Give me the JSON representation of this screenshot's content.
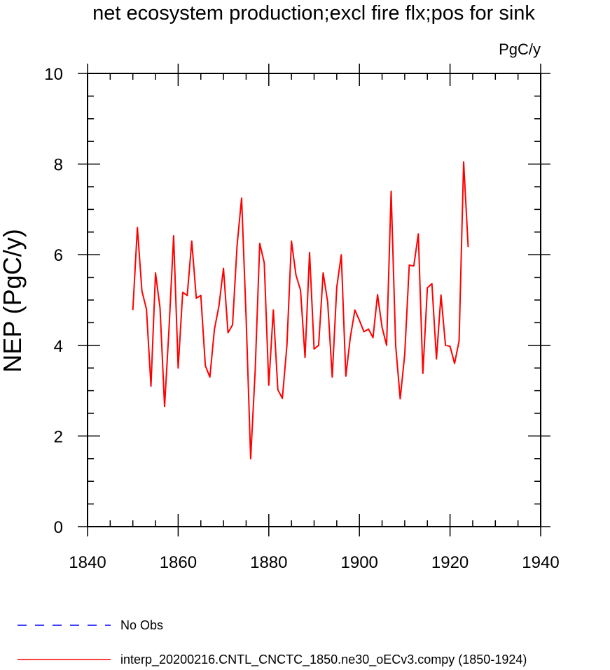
{
  "chart_data": {
    "type": "line",
    "title": "net ecosystem production;excl fire flx;pos for sink",
    "units": "PgC/y",
    "ylabel": "NEP  (PgC/y)",
    "xlabel": "",
    "xlim": [
      1840,
      1940
    ],
    "ylim": [
      0,
      10
    ],
    "x_major_ticks": [
      1840,
      1860,
      1880,
      1900,
      1920,
      1940
    ],
    "y_major_ticks": [
      0,
      2,
      4,
      6,
      8,
      10
    ],
    "x_minor_step": 5,
    "y_minor_step": 0.5,
    "grid": false,
    "legend_position": "bottom-left",
    "series": [
      {
        "name": "No Obs",
        "color": "#0000ff",
        "style": "dashed",
        "x": [],
        "values": []
      },
      {
        "name": "interp_20200216.CNTL_CNCTC_1850.ne30_oECv3.compy (1850-1924)",
        "color": "#ff0000",
        "style": "solid",
        "x": [
          1850,
          1851,
          1852,
          1853,
          1854,
          1855,
          1856,
          1857,
          1858,
          1859,
          1860,
          1861,
          1862,
          1863,
          1864,
          1865,
          1866,
          1867,
          1868,
          1869,
          1870,
          1871,
          1872,
          1873,
          1874,
          1875,
          1876,
          1877,
          1878,
          1879,
          1880,
          1881,
          1882,
          1883,
          1884,
          1885,
          1886,
          1887,
          1888,
          1889,
          1890,
          1891,
          1892,
          1893,
          1894,
          1895,
          1896,
          1897,
          1898,
          1899,
          1900,
          1901,
          1902,
          1903,
          1904,
          1905,
          1906,
          1907,
          1908,
          1909,
          1910,
          1911,
          1912,
          1913,
          1914,
          1915,
          1916,
          1917,
          1918,
          1919,
          1920,
          1921,
          1922,
          1923,
          1924
        ],
        "values": [
          4.78,
          6.6,
          5.2,
          4.8,
          3.1,
          5.6,
          4.82,
          2.65,
          4.4,
          6.42,
          3.5,
          5.17,
          5.1,
          6.3,
          5.04,
          5.1,
          3.55,
          3.3,
          4.35,
          4.87,
          5.7,
          4.28,
          4.45,
          6.2,
          7.25,
          4.6,
          1.5,
          3.45,
          6.25,
          5.82,
          3.12,
          4.78,
          3.02,
          2.83,
          4.0,
          6.3,
          5.55,
          5.22,
          3.73,
          6.05,
          3.92,
          4.0,
          5.6,
          4.95,
          3.3,
          5.28,
          6.0,
          3.32,
          4.18,
          4.78,
          4.55,
          4.3,
          4.36,
          4.17,
          5.12,
          4.4,
          4.0,
          7.4,
          4.0,
          2.82,
          3.8,
          5.77,
          5.75,
          6.46,
          3.38,
          5.27,
          5.36,
          3.7,
          5.11,
          4.0,
          3.98,
          3.6,
          4.1,
          8.05,
          6.17
        ]
      }
    ]
  }
}
